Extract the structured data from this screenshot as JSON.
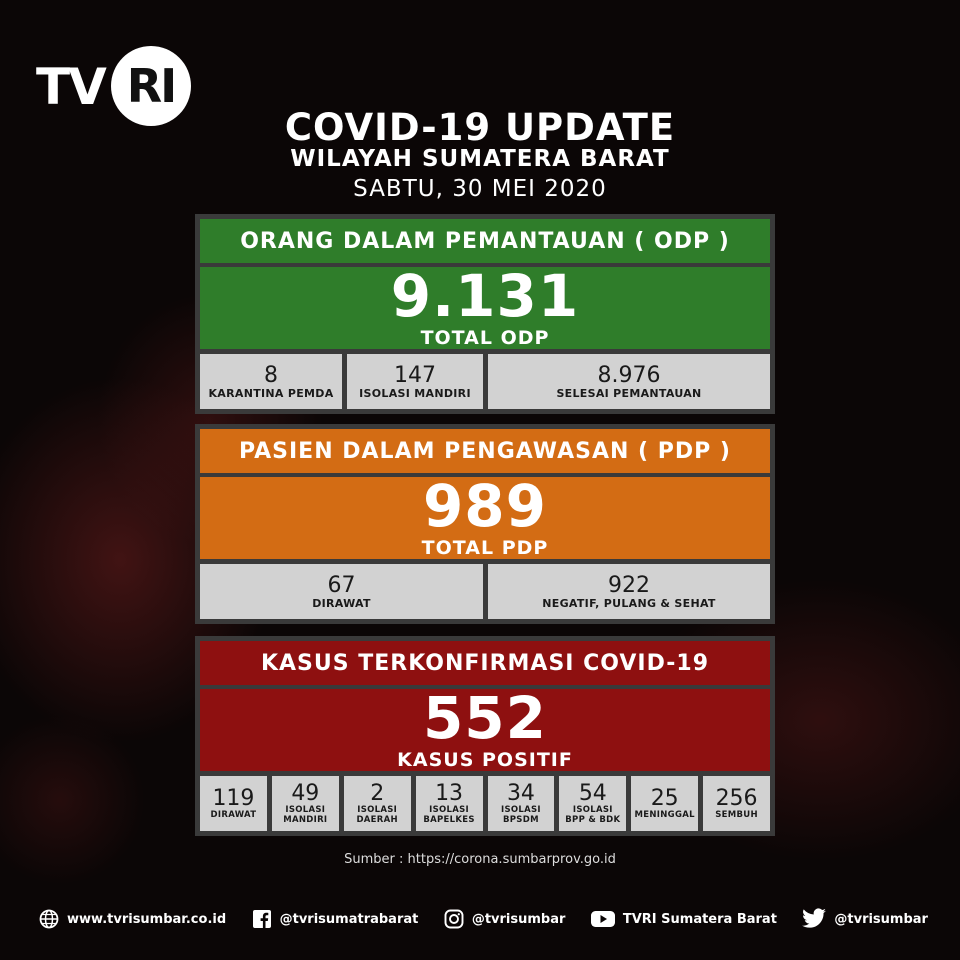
{
  "logo": {
    "tv": "TV",
    "ri": "RI"
  },
  "header": {
    "title": "COVID-19 UPDATE",
    "region": "WILAYAH SUMATERA BARAT",
    "date": "SABTU, 30 MEI 2020"
  },
  "odp": {
    "heading": "ORANG DALAM PEMANTAUAN ( ODP )",
    "total": "9.131",
    "total_label": "TOTAL ODP",
    "cells": [
      {
        "value": "8",
        "label": "KARANTINA PEMDA"
      },
      {
        "value": "147",
        "label": "ISOLASI MANDIRI"
      },
      {
        "value": "8.976",
        "label": "SELESAI PEMANTAUAN"
      }
    ],
    "color": "#2f7d2a"
  },
  "pdp": {
    "heading": "PASIEN DALAM PENGAWASAN ( PDP )",
    "total": "989",
    "total_label": "TOTAL PDP",
    "cells": [
      {
        "value": "67",
        "label": "DIRAWAT"
      },
      {
        "value": "922",
        "label": "NEGATIF, PULANG & SEHAT"
      }
    ],
    "color": "#d36c14"
  },
  "kasus": {
    "heading": "KASUS TERKONFIRMASI COVID-19",
    "total": "552",
    "total_label": "KASUS POSITIF",
    "cells": [
      {
        "value": "119",
        "label1": "DIRAWAT",
        "label2": ""
      },
      {
        "value": "49",
        "label1": "ISOLASI",
        "label2": "MANDIRI"
      },
      {
        "value": "2",
        "label1": "ISOLASI",
        "label2": "DAERAH"
      },
      {
        "value": "13",
        "label1": "ISOLASI",
        "label2": "BAPELKES"
      },
      {
        "value": "34",
        "label1": "ISOLASI",
        "label2": "BPSDM"
      },
      {
        "value": "54",
        "label1": "ISOLASI",
        "label2": "BPP & BDK"
      },
      {
        "value": "25",
        "label1": "MENINGGAL",
        "label2": ""
      },
      {
        "value": "256",
        "label1": "SEMBUH",
        "label2": ""
      }
    ],
    "color": "#8e1010"
  },
  "source": "Sumber : https://corona.sumbarprov.go.id",
  "footer": {
    "website": "www.tvrisumbar.co.id",
    "facebook": "@tvrisumatrabarat",
    "instagram": "@tvrisumbar",
    "youtube": "TVRI Sumatera Barat",
    "twitter": "@tvrisumbar"
  }
}
